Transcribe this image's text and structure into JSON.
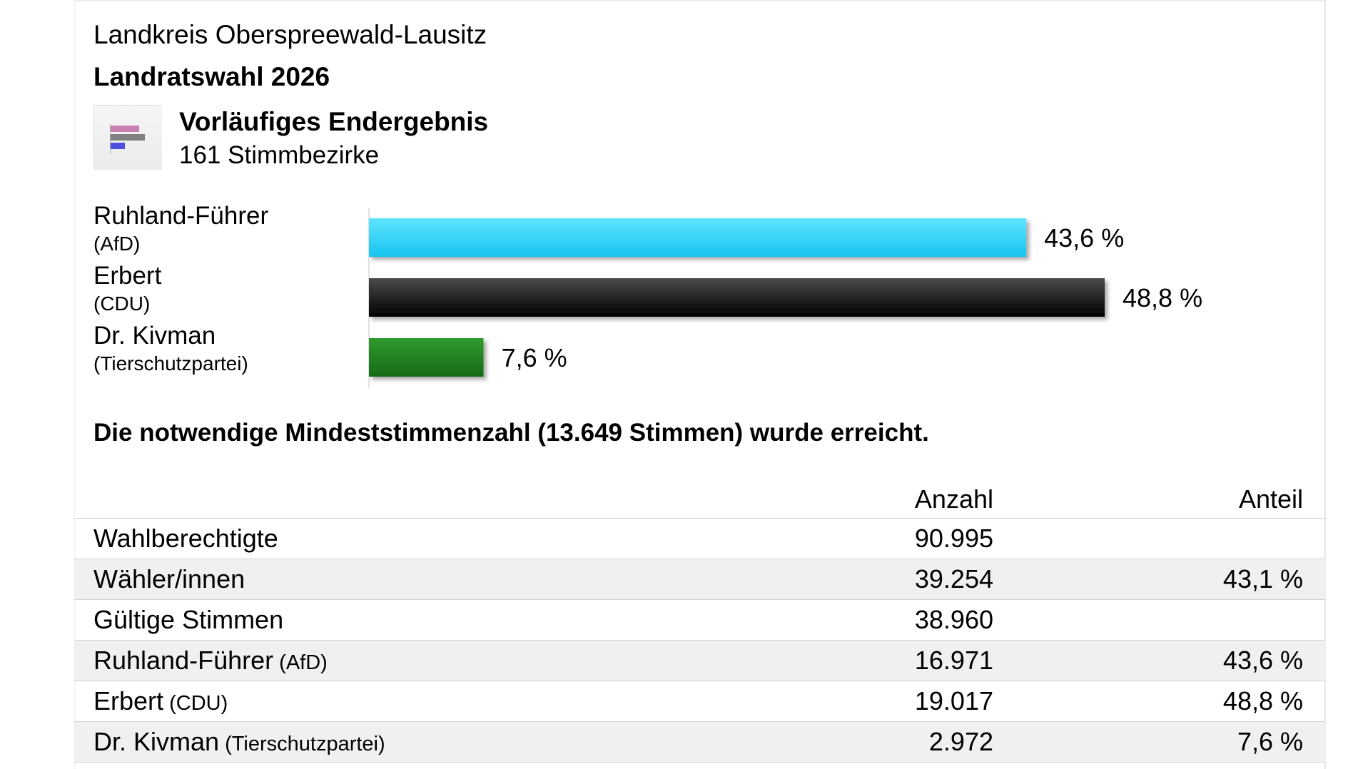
{
  "header": {
    "region": "Landkreis Oberspreewald-Lausitz",
    "election": "Landratswahl 2026",
    "status_title": "Vorläufiges Endergebnis",
    "status_subtitle": "161 Stimmbezirke"
  },
  "icon": {
    "name": "bar-chart-icon",
    "colors": [
      "#c97fb0",
      "#808080",
      "#4f4fe0"
    ]
  },
  "chart_data": {
    "type": "bar",
    "orientation": "horizontal",
    "unit": "%",
    "xlim": [
      0,
      55
    ],
    "categories": [
      {
        "name": "Ruhland-Führer",
        "party": "(AfD)"
      },
      {
        "name": "Erbert",
        "party": "(CDU)"
      },
      {
        "name": "Dr. Kivman",
        "party": "(Tierschutzpartei)"
      }
    ],
    "values": [
      43.6,
      48.8,
      7.6
    ],
    "value_labels": [
      "43,6 %",
      "48,8 %",
      "7,6 %"
    ],
    "colors": [
      "#29d0f6",
      "#0d0d0d",
      "#1f7f1f"
    ]
  },
  "quorum_text": "Die notwendige Mindeststimmenzahl (13.649 Stimmen) wurde erreicht.",
  "table": {
    "headers": {
      "count": "Anzahl",
      "share": "Anteil"
    },
    "rows": [
      {
        "label": "Wahlberechtigte",
        "party": "",
        "count": "90.995",
        "share": ""
      },
      {
        "label": "Wähler/innen",
        "party": "",
        "count": "39.254",
        "share": "43,1 %"
      },
      {
        "label": "Gültige Stimmen",
        "party": "",
        "count": "38.960",
        "share": ""
      },
      {
        "label": "Ruhland-Führer",
        "party": "(AfD)",
        "count": "16.971",
        "share": "43,6 %"
      },
      {
        "label": "Erbert",
        "party": "(CDU)",
        "count": "19.017",
        "share": "48,8 %"
      },
      {
        "label": "Dr. Kivman",
        "party": "(Tierschutzpartei)",
        "count": "2.972",
        "share": "7,6 %"
      }
    ]
  }
}
